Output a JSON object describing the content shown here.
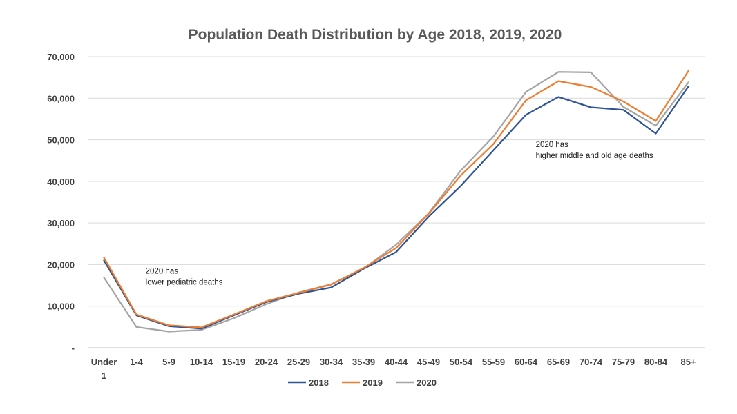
{
  "chart_data": {
    "type": "line",
    "title": "Population Death Distribution by Age 2018, 2019, 2020",
    "categories": [
      "Under 1",
      "1-4",
      "5-9",
      "10-14",
      "15-19",
      "20-24",
      "25-29",
      "30-34",
      "35-39",
      "40-44",
      "45-49",
      "50-54",
      "55-59",
      "60-64",
      "65-69",
      "70-74",
      "75-79",
      "80-84",
      "85+"
    ],
    "y_ticks": [
      "-",
      "10,000",
      "20,000",
      "30,000",
      "40,000",
      "50,000",
      "60,000",
      "70,000"
    ],
    "ylim": [
      0,
      70000
    ],
    "grid": true,
    "legend_position": "bottom",
    "series": [
      {
        "name": "2018",
        "color": "#2f5597",
        "values": [
          21000,
          7800,
          5200,
          4600,
          7800,
          11000,
          13000,
          14500,
          19000,
          23000,
          31500,
          39000,
          47500,
          56000,
          60300,
          57800,
          57200,
          51500,
          62800
        ]
      },
      {
        "name": "2019",
        "color": "#ed7d31",
        "values": [
          21700,
          8000,
          5400,
          4900,
          8000,
          11200,
          13200,
          15200,
          19200,
          24000,
          32200,
          41500,
          49000,
          59500,
          64100,
          62700,
          59200,
          54500,
          66500
        ]
      },
      {
        "name": "2020",
        "color": "#a5a5a5",
        "values": [
          16900,
          5000,
          3900,
          4300,
          7100,
          10500,
          13300,
          15300,
          19000,
          24800,
          32300,
          42700,
          50800,
          61500,
          66300,
          66200,
          57900,
          53400,
          63800
        ]
      }
    ],
    "annotations": [
      {
        "lines": [
          "2020 has",
          "lower pediatric deaths"
        ]
      },
      {
        "lines": [
          "2020 has",
          "higher middle and old age deaths"
        ]
      }
    ]
  }
}
